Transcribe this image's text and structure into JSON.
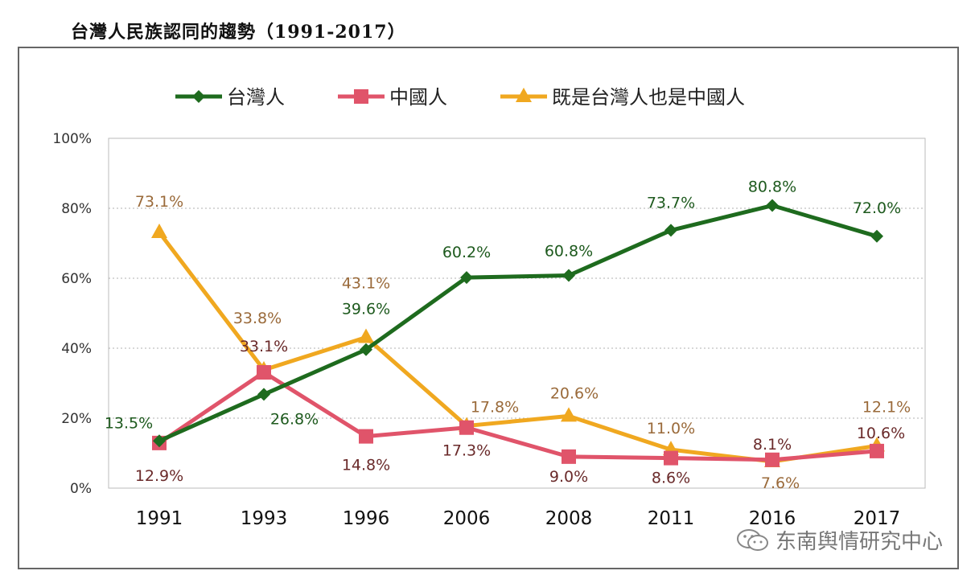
{
  "title": "台灣人民族認同的趨勢（1991-2017）",
  "watermark": "东南舆情研究中心",
  "chart_data": {
    "type": "line",
    "categories": [
      "1991",
      "1993",
      "1996",
      "2006",
      "2008",
      "2011",
      "2016",
      "2017"
    ],
    "ylim": [
      0,
      100
    ],
    "yticks": [
      "0%",
      "20%",
      "40%",
      "60%",
      "80%",
      "100%"
    ],
    "ytick_values": [
      0,
      20,
      40,
      60,
      80,
      100
    ],
    "legend_position": "top",
    "grid": true,
    "series": [
      {
        "name": "台灣人",
        "color": "#1e6b1e",
        "label_color": "#1e5a1e",
        "marker": "diamond",
        "values": [
          13.5,
          26.8,
          39.6,
          60.2,
          60.8,
          73.7,
          80.8,
          72.0
        ],
        "labels": [
          "13.5%",
          "26.8%",
          "39.6%",
          "60.2%",
          "60.8%",
          "73.7%",
          "80.8%",
          "72.0%"
        ]
      },
      {
        "name": "中國人",
        "color": "#e0546a",
        "label_color": "#6a2a2a",
        "marker": "square",
        "values": [
          12.9,
          33.1,
          14.8,
          17.3,
          9.0,
          8.6,
          8.1,
          10.6
        ],
        "labels": [
          "12.9%",
          "33.1%",
          "14.8%",
          "17.3%",
          "9.0%",
          "8.6%",
          "8.1%",
          "10.6%"
        ]
      },
      {
        "name": "既是台灣人也是中國人",
        "color": "#f0a820",
        "label_color": "#9a6a3a",
        "marker": "triangle",
        "values": [
          73.1,
          33.8,
          43.1,
          17.8,
          20.6,
          11.0,
          7.6,
          12.1
        ],
        "labels": [
          "73.1%",
          "33.8%",
          "43.1%",
          "17.8%",
          "20.6%",
          "11.0%",
          "7.6%",
          "12.1%"
        ]
      }
    ]
  }
}
